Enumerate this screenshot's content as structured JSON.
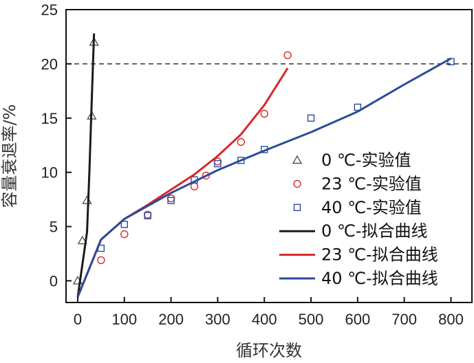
{
  "chart_data": {
    "type": "line",
    "title": "",
    "xlabel": "循环次数",
    "ylabel": "容量衰退率/%",
    "xlim": [
      -25,
      845
    ],
    "ylim": [
      -2,
      25
    ],
    "xticks": [
      0,
      100,
      200,
      300,
      400,
      500,
      600,
      700,
      800
    ],
    "yticks": [
      0,
      5,
      10,
      15,
      20,
      25
    ],
    "reference_line": {
      "y": 20,
      "style": "dashed"
    },
    "legend_position": "right",
    "colors": {
      "black": "#1a1a1a",
      "red": "#d62728",
      "blue": "#2a4a9a",
      "gray": "#555555"
    },
    "series": [
      {
        "name": "0 ℃-实验值",
        "kind": "scatter",
        "marker": "triangle",
        "color": "#555555",
        "x": [
          0,
          10,
          20,
          30,
          35
        ],
        "y": [
          0,
          3.7,
          7.4,
          15.2,
          22.0
        ]
      },
      {
        "name": "23 ℃-实验值",
        "kind": "scatter",
        "marker": "circle",
        "color": "#d62728",
        "x": [
          50,
          100,
          150,
          200,
          250,
          275,
          300,
          350,
          400,
          450
        ],
        "y": [
          1.9,
          4.3,
          6.1,
          7.6,
          8.7,
          9.7,
          11.0,
          12.8,
          15.4,
          20.8
        ]
      },
      {
        "name": "40 ℃-实验值",
        "kind": "scatter",
        "marker": "square",
        "color": "#2a4a9a",
        "x": [
          50,
          100,
          150,
          200,
          250,
          300,
          350,
          400,
          500,
          600,
          800
        ],
        "y": [
          3.0,
          5.2,
          6.0,
          7.4,
          9.3,
          10.8,
          11.1,
          12.1,
          15.0,
          16.0,
          20.2
        ]
      },
      {
        "name": "0 ℃-拟合曲线",
        "kind": "line",
        "color": "#1a1a1a",
        "x": [
          0,
          10,
          20,
          25,
          30,
          35
        ],
        "y": [
          -1.5,
          1.5,
          4.5,
          10.0,
          16.5,
          22.8
        ]
      },
      {
        "name": "23 ℃-拟合曲线",
        "kind": "line",
        "color": "#d62728",
        "x": [
          0,
          50,
          100,
          150,
          200,
          250,
          300,
          350,
          400,
          450
        ],
        "y": [
          -1.5,
          3.8,
          5.7,
          7.0,
          8.4,
          9.8,
          11.5,
          13.5,
          16.2,
          19.6
        ]
      },
      {
        "name": "40 ℃-拟合曲线",
        "kind": "line",
        "color": "#2a4a9a",
        "x": [
          0,
          50,
          100,
          150,
          200,
          300,
          400,
          500,
          600,
          700,
          800
        ],
        "y": [
          -1.5,
          3.8,
          5.7,
          6.9,
          8.1,
          10.2,
          12.0,
          13.7,
          15.6,
          18.1,
          20.5
        ]
      }
    ]
  }
}
